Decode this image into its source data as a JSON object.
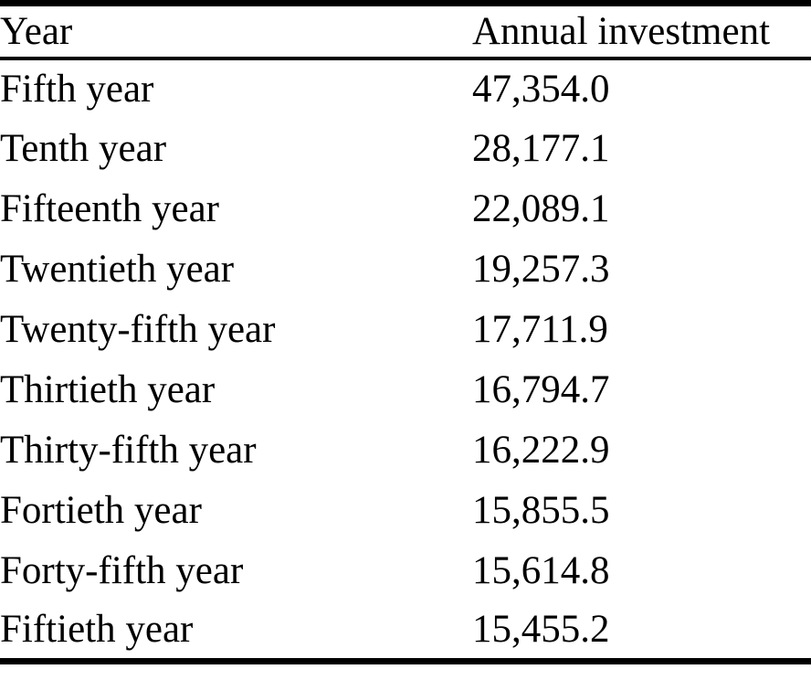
{
  "table": {
    "columns": [
      "Year",
      "Annual investment"
    ],
    "rows": [
      {
        "year": "Fifth year",
        "investment": "47,354.0"
      },
      {
        "year": "Tenth year",
        "investment": "28,177.1"
      },
      {
        "year": "Fifteenth year",
        "investment": "22,089.1"
      },
      {
        "year": "Twentieth year",
        "investment": "19,257.3"
      },
      {
        "year": "Twenty-fifth year",
        "investment": "17,711.9"
      },
      {
        "year": "Thirtieth year",
        "investment": "16,794.7"
      },
      {
        "year": "Thirty-fifth year",
        "investment": "16,222.9"
      },
      {
        "year": "Fortieth year",
        "investment": "15,855.5"
      },
      {
        "year": "Forty-fifth year",
        "investment": "15,614.8"
      },
      {
        "year": "Fiftieth year",
        "investment": "15,455.2"
      }
    ]
  },
  "chart_data": {
    "type": "table",
    "title": "",
    "categories": [
      "Fifth year",
      "Tenth year",
      "Fifteenth year",
      "Twentieth year",
      "Twenty-fifth year",
      "Thirtieth year",
      "Thirty-fifth year",
      "Fortieth year",
      "Forty-fifth year",
      "Fiftieth year"
    ],
    "series": [
      {
        "name": "Annual investment",
        "values": [
          47354.0,
          28177.1,
          22089.1,
          19257.3,
          17711.9,
          16794.7,
          16222.9,
          15855.5,
          15614.8,
          15455.2
        ]
      }
    ],
    "colors": {
      "text": "#000000",
      "background": "#ffffff",
      "rule": "#000000"
    }
  }
}
